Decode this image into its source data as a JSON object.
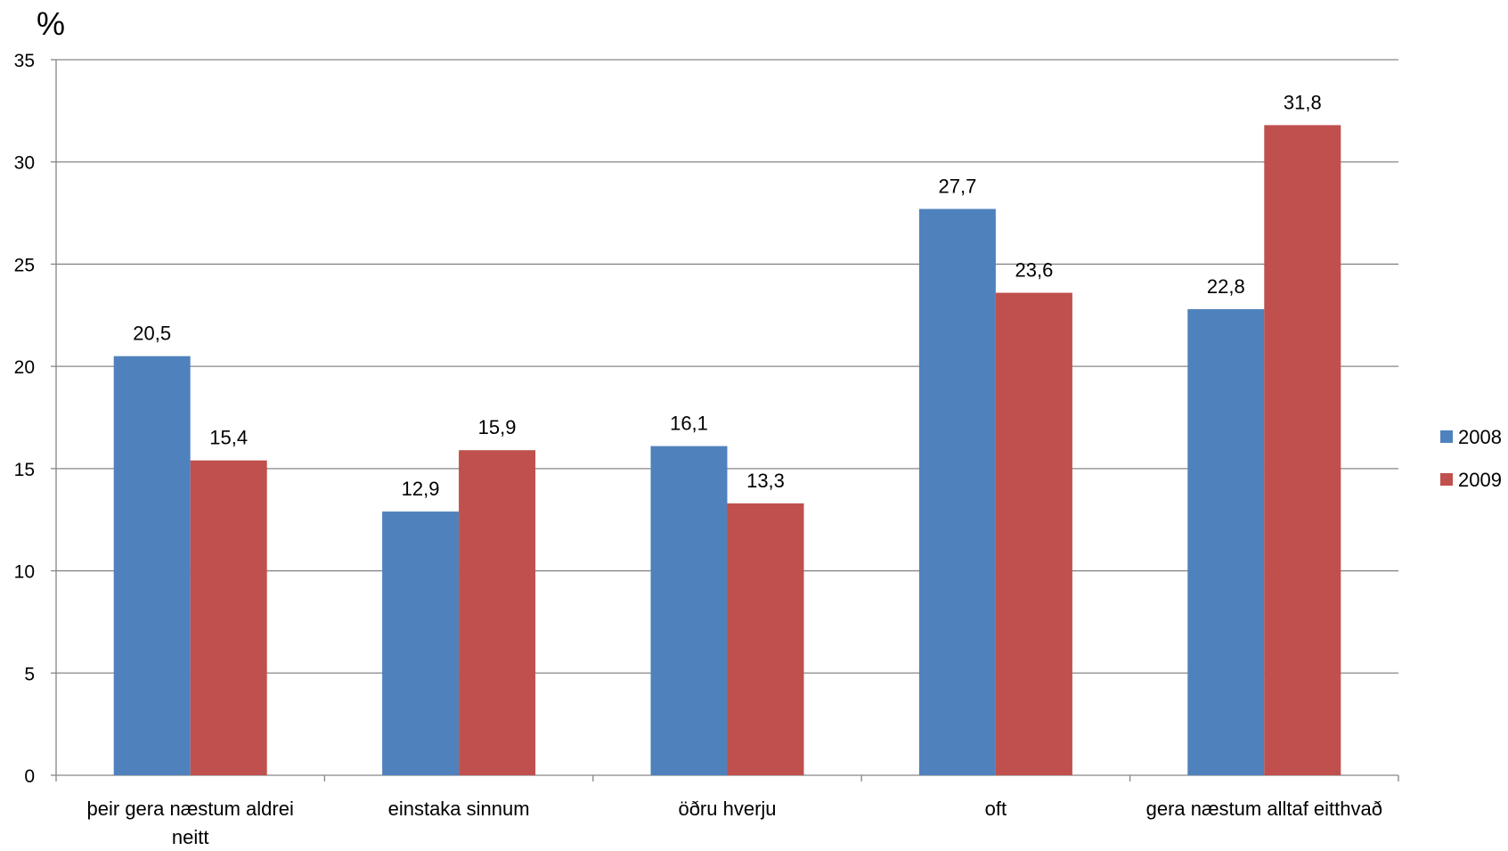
{
  "chart_data": {
    "type": "bar",
    "title": "",
    "xlabel": "",
    "ylabel": "%",
    "ylim": [
      0,
      35
    ],
    "yticks": [
      0,
      5,
      10,
      15,
      20,
      25,
      30,
      35
    ],
    "grid": true,
    "legend_position": "right",
    "categories": [
      [
        "þeir gera næstum aldrei",
        "neitt"
      ],
      [
        "einstaka sinnum"
      ],
      [
        "öðru hverju"
      ],
      [
        "oft"
      ],
      [
        "gera næstum alltaf eitthvað"
      ]
    ],
    "series": [
      {
        "name": "2008",
        "color": "#4F81BD",
        "values": [
          20.5,
          12.9,
          16.1,
          27.7,
          22.8
        ],
        "labels": [
          "20,5",
          "12,9",
          "16,1",
          "27,7",
          "22,8"
        ]
      },
      {
        "name": "2009",
        "color": "#C0504D",
        "values": [
          15.4,
          15.9,
          13.3,
          23.6,
          31.8
        ],
        "labels": [
          "15,4",
          "15,9",
          "13,3",
          "23,6",
          "31,8"
        ]
      }
    ]
  }
}
